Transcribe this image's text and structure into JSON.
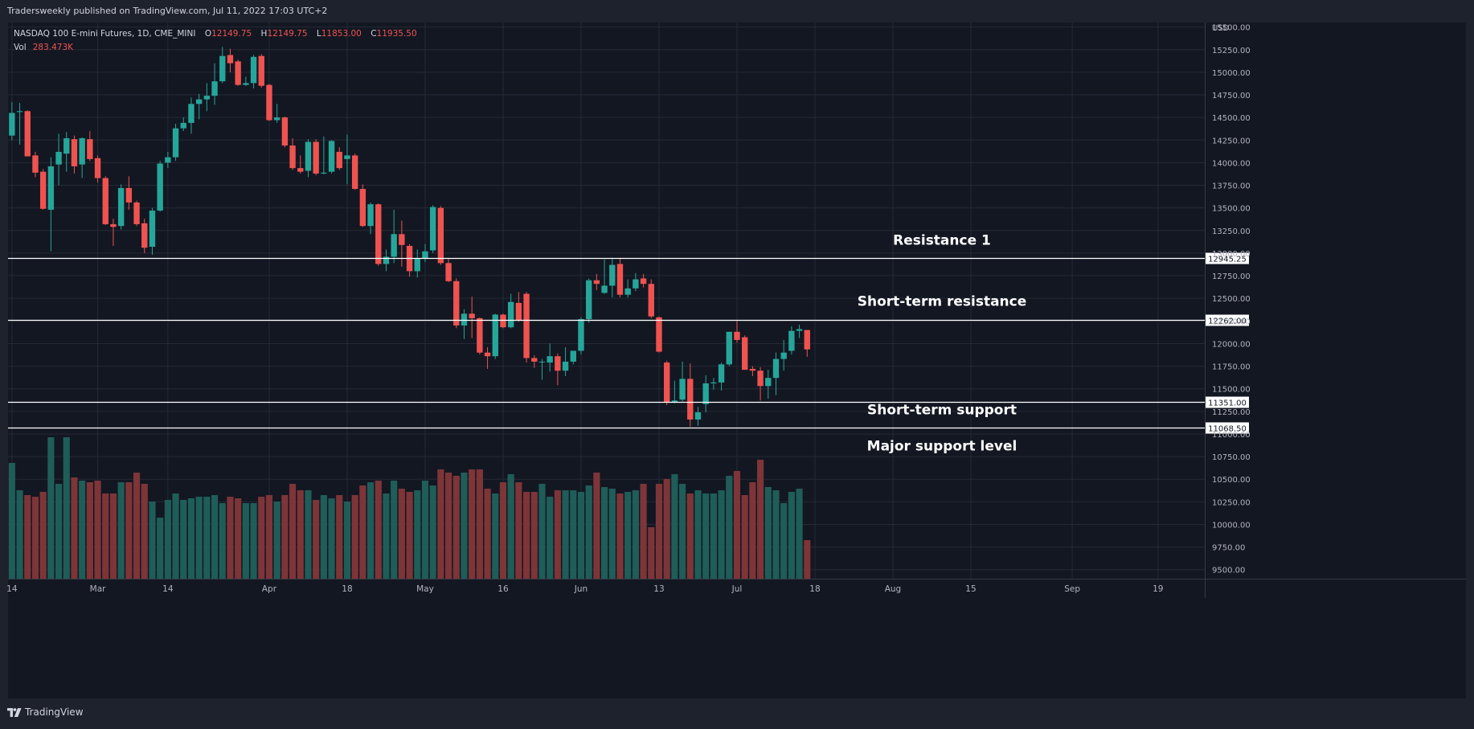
{
  "header": {
    "published_text": "Tradersweekly published on TradingView.com, Jul 11, 2022 17:03 UTC+2"
  },
  "legend": {
    "symbol": "NASDAQ 100 E-mini Futures, 1D, CME_MINI",
    "open_label": "O",
    "open": "12149.75",
    "high_label": "H",
    "high": "12149.75",
    "low_label": "L",
    "low": "11853.00",
    "close_label": "C",
    "close": "11935.50",
    "vol_label": "Vol",
    "vol": "283.473K"
  },
  "footer": {
    "brand": "TradingView"
  },
  "colors": {
    "up": "#26a69a",
    "down": "#ef5350",
    "vol_up": "#1f5d59",
    "vol_down": "#7e3538",
    "background": "#131722",
    "grid": "#262a35",
    "text": "#b2b5be",
    "level_line": "#ffffff"
  },
  "chart_data": {
    "type": "candlestick",
    "title": "NASDAQ 100 E-mini Futures, 1D, CME_MINI",
    "y_axis_unit": "USD",
    "y_ticks": [
      15500,
      15250,
      15000,
      14750,
      14500,
      14250,
      14000,
      13750,
      13500,
      13250,
      13000,
      12750,
      12500,
      12250,
      12000,
      11750,
      11500,
      11250,
      11000,
      10750,
      10500,
      10250,
      10000,
      9750,
      9500
    ],
    "y_range": [
      9400,
      15550
    ],
    "x_tick_labels": [
      "14",
      "Mar",
      "14",
      "Apr",
      "18",
      "May",
      "16",
      "Jun",
      "13",
      "Jul",
      "18",
      "Aug",
      "15",
      "Sep",
      "19"
    ],
    "x_tick_days": [
      0,
      11,
      20,
      33,
      43,
      53,
      63,
      73,
      83,
      93,
      103,
      113,
      123,
      136,
      147
    ],
    "x_range_days": [
      -0.5,
      153
    ],
    "levels": [
      {
        "value": 12945.25,
        "label": "12945.25",
        "annotation": "Resistance 1"
      },
      {
        "value": 12262.0,
        "label": "12262.00",
        "annotation": "Short-term resistance"
      },
      {
        "value": 11351.0,
        "label": "11351.00",
        "annotation": "Short-term support"
      },
      {
        "value": 11068.5,
        "label": "11068.50",
        "annotation": "Major support level"
      }
    ],
    "candles": [
      {
        "o": 14300,
        "h": 14670,
        "l": 14250,
        "c": 14550
      },
      {
        "o": 14560,
        "h": 14660,
        "l": 14200,
        "c": 14570
      },
      {
        "o": 14570,
        "h": 14580,
        "l": 14070,
        "c": 14070
      },
      {
        "o": 14080,
        "h": 14120,
        "l": 13840,
        "c": 13890
      },
      {
        "o": 13900,
        "h": 13930,
        "l": 13480,
        "c": 13490
      },
      {
        "o": 13480,
        "h": 14060,
        "l": 13020,
        "c": 13960
      },
      {
        "o": 13980,
        "h": 14320,
        "l": 13750,
        "c": 14120
      },
      {
        "o": 14100,
        "h": 14340,
        "l": 13900,
        "c": 14270
      },
      {
        "o": 14260,
        "h": 14300,
        "l": 13880,
        "c": 13960
      },
      {
        "o": 13980,
        "h": 14280,
        "l": 13830,
        "c": 14270
      },
      {
        "o": 14260,
        "h": 14350,
        "l": 14020,
        "c": 14040
      },
      {
        "o": 14050,
        "h": 14080,
        "l": 13780,
        "c": 13830
      },
      {
        "o": 13830,
        "h": 13850,
        "l": 13310,
        "c": 13320
      },
      {
        "o": 13320,
        "h": 13380,
        "l": 13080,
        "c": 13290
      },
      {
        "o": 13300,
        "h": 13760,
        "l": 13260,
        "c": 13720
      },
      {
        "o": 13720,
        "h": 13850,
        "l": 13480,
        "c": 13560
      },
      {
        "o": 13560,
        "h": 13580,
        "l": 13300,
        "c": 13320
      },
      {
        "o": 13330,
        "h": 13380,
        "l": 13000,
        "c": 13060
      },
      {
        "o": 13070,
        "h": 13500,
        "l": 12980,
        "c": 13470
      },
      {
        "o": 13470,
        "h": 14020,
        "l": 13460,
        "c": 13990
      },
      {
        "o": 14000,
        "h": 14120,
        "l": 13940,
        "c": 14060
      },
      {
        "o": 14060,
        "h": 14430,
        "l": 14020,
        "c": 14380
      },
      {
        "o": 14380,
        "h": 14500,
        "l": 14350,
        "c": 14440
      },
      {
        "o": 14440,
        "h": 14720,
        "l": 14320,
        "c": 14650
      },
      {
        "o": 14650,
        "h": 14760,
        "l": 14480,
        "c": 14700
      },
      {
        "o": 14700,
        "h": 14880,
        "l": 14570,
        "c": 14740
      },
      {
        "o": 14740,
        "h": 15100,
        "l": 14640,
        "c": 14900
      },
      {
        "o": 14900,
        "h": 15280,
        "l": 14880,
        "c": 15180
      },
      {
        "o": 15190,
        "h": 15260,
        "l": 15000,
        "c": 15100
      },
      {
        "o": 15120,
        "h": 15140,
        "l": 14850,
        "c": 14860
      },
      {
        "o": 14860,
        "h": 14950,
        "l": 14850,
        "c": 14880
      },
      {
        "o": 14880,
        "h": 15190,
        "l": 14820,
        "c": 15170
      },
      {
        "o": 15180,
        "h": 15200,
        "l": 14830,
        "c": 14850
      },
      {
        "o": 14860,
        "h": 14870,
        "l": 14460,
        "c": 14470
      },
      {
        "o": 14470,
        "h": 14650,
        "l": 14440,
        "c": 14500
      },
      {
        "o": 14500,
        "h": 14510,
        "l": 14170,
        "c": 14190
      },
      {
        "o": 14190,
        "h": 14270,
        "l": 13920,
        "c": 13940
      },
      {
        "o": 13940,
        "h": 14080,
        "l": 13880,
        "c": 13900
      },
      {
        "o": 13910,
        "h": 14260,
        "l": 13840,
        "c": 14230
      },
      {
        "o": 14230,
        "h": 14260,
        "l": 13860,
        "c": 13880
      },
      {
        "o": 13880,
        "h": 14290,
        "l": 13870,
        "c": 13890
      },
      {
        "o": 13900,
        "h": 14250,
        "l": 13880,
        "c": 14240
      },
      {
        "o": 14120,
        "h": 14170,
        "l": 13920,
        "c": 13940
      },
      {
        "o": 14040,
        "h": 14310,
        "l": 13760,
        "c": 14080
      },
      {
        "o": 14080,
        "h": 14100,
        "l": 13700,
        "c": 13710
      },
      {
        "o": 13710,
        "h": 13760,
        "l": 13290,
        "c": 13300
      },
      {
        "o": 13300,
        "h": 13560,
        "l": 13210,
        "c": 13540
      },
      {
        "o": 13540,
        "h": 13550,
        "l": 12860,
        "c": 12880
      },
      {
        "o": 12880,
        "h": 13040,
        "l": 12800,
        "c": 12960
      },
      {
        "o": 12960,
        "h": 13480,
        "l": 12890,
        "c": 13210
      },
      {
        "o": 13210,
        "h": 13360,
        "l": 12850,
        "c": 13090
      },
      {
        "o": 13080,
        "h": 13100,
        "l": 12740,
        "c": 12800
      },
      {
        "o": 12800,
        "h": 13040,
        "l": 12730,
        "c": 12940
      },
      {
        "o": 12940,
        "h": 13100,
        "l": 12900,
        "c": 13020
      },
      {
        "o": 13030,
        "h": 13530,
        "l": 13000,
        "c": 13510
      },
      {
        "o": 13500,
        "h": 13520,
        "l": 12870,
        "c": 12890
      },
      {
        "o": 12890,
        "h": 12940,
        "l": 12680,
        "c": 12690
      },
      {
        "o": 12690,
        "h": 12720,
        "l": 12170,
        "c": 12200
      },
      {
        "o": 12200,
        "h": 12380,
        "l": 12050,
        "c": 12330
      },
      {
        "o": 12330,
        "h": 12520,
        "l": 12060,
        "c": 12280
      },
      {
        "o": 12280,
        "h": 12290,
        "l": 11880,
        "c": 11900
      },
      {
        "o": 11900,
        "h": 11960,
        "l": 11720,
        "c": 11860
      },
      {
        "o": 11860,
        "h": 12330,
        "l": 11830,
        "c": 12320
      },
      {
        "o": 12320,
        "h": 12330,
        "l": 12170,
        "c": 12180
      },
      {
        "o": 12180,
        "h": 12550,
        "l": 12170,
        "c": 12460
      },
      {
        "o": 12450,
        "h": 12570,
        "l": 12240,
        "c": 12260
      },
      {
        "o": 12550,
        "h": 12570,
        "l": 11790,
        "c": 11840
      },
      {
        "o": 11840,
        "h": 11870,
        "l": 11730,
        "c": 11800
      },
      {
        "o": 11800,
        "h": 11830,
        "l": 11600,
        "c": 11800
      },
      {
        "o": 11790,
        "h": 12000,
        "l": 11690,
        "c": 11860
      },
      {
        "o": 11860,
        "h": 11890,
        "l": 11540,
        "c": 11700
      },
      {
        "o": 11700,
        "h": 11960,
        "l": 11640,
        "c": 11800
      },
      {
        "o": 11800,
        "h": 11920,
        "l": 11770,
        "c": 11920
      },
      {
        "o": 11920,
        "h": 12290,
        "l": 11880,
        "c": 12270
      },
      {
        "o": 12270,
        "h": 12720,
        "l": 12230,
        "c": 12700
      },
      {
        "o": 12700,
        "h": 12770,
        "l": 12590,
        "c": 12660
      },
      {
        "o": 12560,
        "h": 12930,
        "l": 12550,
        "c": 12640
      },
      {
        "o": 12640,
        "h": 12950,
        "l": 12510,
        "c": 12870
      },
      {
        "o": 12880,
        "h": 12950,
        "l": 12510,
        "c": 12540
      },
      {
        "o": 12540,
        "h": 12710,
        "l": 12510,
        "c": 12610
      },
      {
        "o": 12610,
        "h": 12780,
        "l": 12580,
        "c": 12710
      },
      {
        "o": 12720,
        "h": 12770,
        "l": 12620,
        "c": 12660
      },
      {
        "o": 12660,
        "h": 12710,
        "l": 12280,
        "c": 12300
      },
      {
        "o": 12290,
        "h": 12300,
        "l": 11900,
        "c": 11910
      },
      {
        "o": 11790,
        "h": 11810,
        "l": 11320,
        "c": 11350
      },
      {
        "o": 11350,
        "h": 11590,
        "l": 11340,
        "c": 11370
      },
      {
        "o": 11380,
        "h": 11800,
        "l": 11360,
        "c": 11610
      },
      {
        "o": 11610,
        "h": 11780,
        "l": 11080,
        "c": 11160
      },
      {
        "o": 11160,
        "h": 11300,
        "l": 11090,
        "c": 11240
      },
      {
        "o": 11330,
        "h": 11650,
        "l": 11240,
        "c": 11560
      },
      {
        "o": 11560,
        "h": 11620,
        "l": 11490,
        "c": 11570
      },
      {
        "o": 11570,
        "h": 11790,
        "l": 11480,
        "c": 11770
      },
      {
        "o": 11770,
        "h": 12130,
        "l": 11750,
        "c": 12130
      },
      {
        "o": 12130,
        "h": 12250,
        "l": 12010,
        "c": 12040
      },
      {
        "o": 12070,
        "h": 12090,
        "l": 11710,
        "c": 11710
      },
      {
        "o": 11720,
        "h": 11750,
        "l": 11640,
        "c": 11700
      },
      {
        "o": 11700,
        "h": 11740,
        "l": 11370,
        "c": 11530
      },
      {
        "o": 11530,
        "h": 11710,
        "l": 11390,
        "c": 11620
      },
      {
        "o": 11620,
        "h": 11900,
        "l": 11430,
        "c": 11830
      },
      {
        "o": 11830,
        "h": 12040,
        "l": 11700,
        "c": 11900
      },
      {
        "o": 11920,
        "h": 12190,
        "l": 11880,
        "c": 12140
      },
      {
        "o": 12140,
        "h": 12210,
        "l": 12060,
        "c": 12160
      },
      {
        "o": 12149.75,
        "h": 12149.75,
        "l": 11853,
        "c": 11935.5
      }
    ],
    "volume": [
      0.72,
      0.55,
      0.52,
      0.51,
      0.54,
      0.88,
      0.59,
      0.88,
      0.63,
      0.61,
      0.6,
      0.61,
      0.53,
      0.53,
      0.6,
      0.6,
      0.66,
      0.59,
      0.48,
      0.38,
      0.49,
      0.53,
      0.49,
      0.5,
      0.51,
      0.51,
      0.52,
      0.47,
      0.51,
      0.5,
      0.47,
      0.47,
      0.51,
      0.52,
      0.48,
      0.52,
      0.59,
      0.55,
      0.55,
      0.49,
      0.52,
      0.5,
      0.52,
      0.48,
      0.52,
      0.58,
      0.6,
      0.61,
      0.53,
      0.61,
      0.56,
      0.54,
      0.55,
      0.61,
      0.58,
      0.68,
      0.66,
      0.64,
      0.66,
      0.68,
      0.68,
      0.56,
      0.53,
      0.6,
      0.65,
      0.6,
      0.54,
      0.54,
      0.59,
      0.51,
      0.55,
      0.55,
      0.55,
      0.54,
      0.58,
      0.66,
      0.57,
      0.56,
      0.53,
      0.54,
      0.55,
      0.59,
      0.32,
      0.59,
      0.62,
      0.65,
      0.59,
      0.53,
      0.55,
      0.53,
      0.53,
      0.55,
      0.64,
      0.67,
      0.52,
      0.6,
      0.74,
      0.57,
      0.55,
      0.47,
      0.54,
      0.56,
      0.24
    ]
  }
}
